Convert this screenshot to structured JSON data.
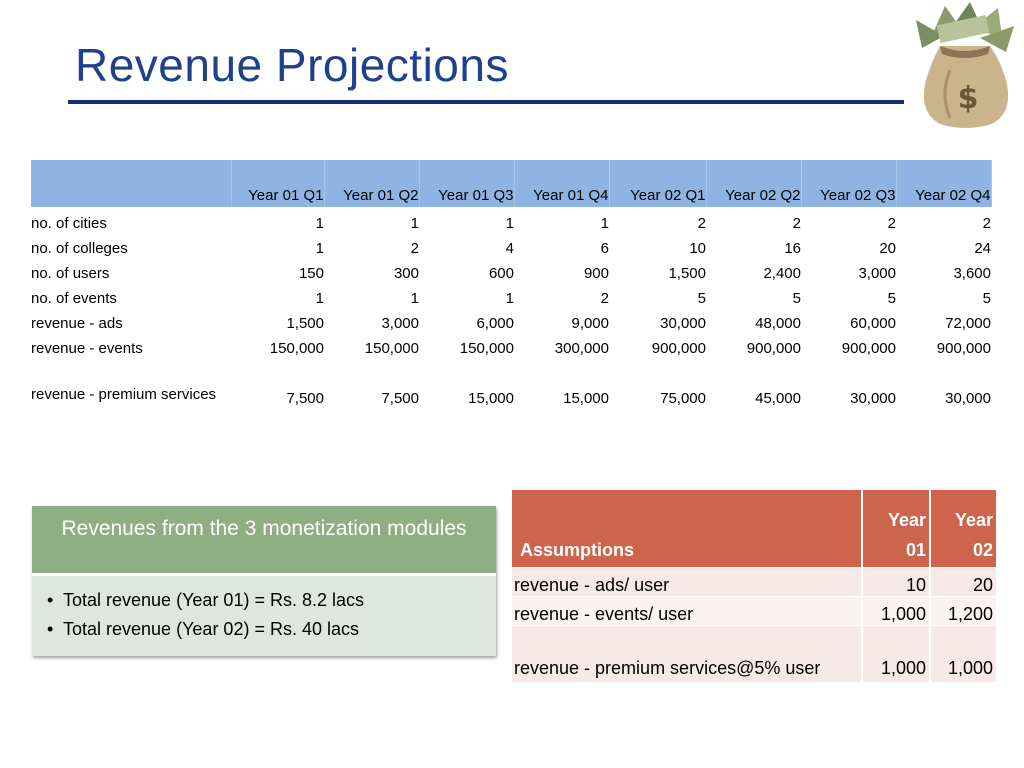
{
  "slide": {
    "title": "Revenue Projections",
    "image_icon": "money-bag-icon"
  },
  "projections": {
    "headers": [
      "",
      "Year 01 Q1",
      "Year 01 Q2",
      "Year 01 Q3",
      "Year 01 Q4",
      "Year 02 Q1",
      "Year 02 Q2",
      "Year 02 Q3",
      "Year 02 Q4"
    ],
    "rows": [
      {
        "label": "no. of cities",
        "values": [
          "1",
          "1",
          "1",
          "1",
          "2",
          "2",
          "2",
          "2"
        ]
      },
      {
        "label": "no. of colleges",
        "values": [
          "1",
          "2",
          "4",
          "6",
          "10",
          "16",
          "20",
          "24"
        ]
      },
      {
        "label": "no. of users",
        "values": [
          "150",
          "300",
          "600",
          "900",
          "1,500",
          "2,400",
          "3,000",
          "3,600"
        ]
      },
      {
        "label": "no. of events",
        "values": [
          "1",
          "1",
          "1",
          "2",
          "5",
          "5",
          "5",
          "5"
        ]
      },
      {
        "label": "revenue - ads",
        "values": [
          "1,500",
          "3,000",
          "6,000",
          "9,000",
          "30,000",
          "48,000",
          "60,000",
          "72,000"
        ]
      },
      {
        "label": "revenue - events",
        "values": [
          "150,000",
          "150,000",
          "150,000",
          "300,000",
          "900,000",
          "900,000",
          "900,000",
          "900,000"
        ]
      },
      {
        "label": "revenue - premium services",
        "values": [
          "7,500",
          "7,500",
          "15,000",
          "15,000",
          "75,000",
          "45,000",
          "30,000",
          "30,000"
        ]
      }
    ]
  },
  "revenues": {
    "heading": "Revenues from the 3 monetization modules",
    "items": [
      "Total revenue (Year 01) = Rs. 8.2 lacs",
      "Total revenue (Year 02) = Rs. 40 lacs"
    ]
  },
  "assumptions": {
    "headers": [
      "Assumptions",
      "Year 01",
      "Year 02"
    ],
    "rows": [
      {
        "label": "revenue - ads/ user",
        "values": [
          "10",
          "20"
        ]
      },
      {
        "label": "revenue - events/ user",
        "values": [
          "1,000",
          "1,200"
        ]
      },
      {
        "label": "revenue - premium services@5% user",
        "values": [
          "1,000",
          "1,000"
        ]
      }
    ]
  }
}
